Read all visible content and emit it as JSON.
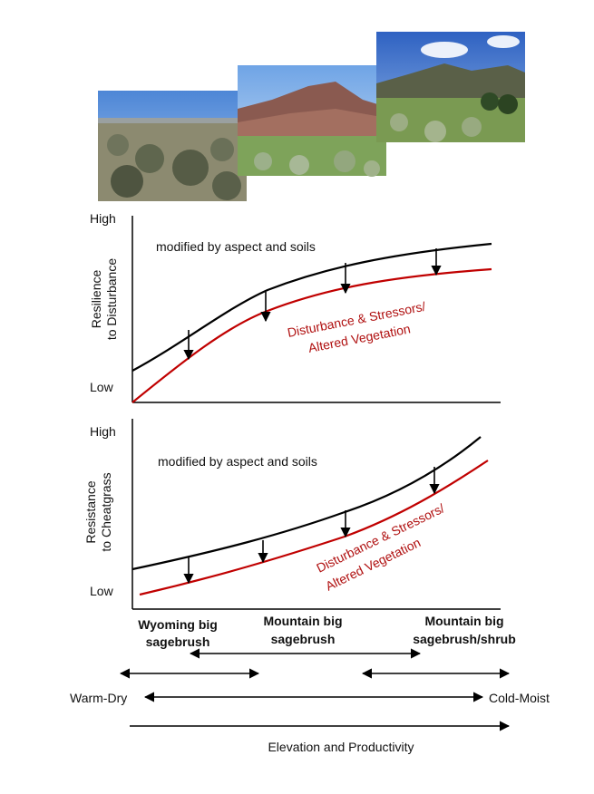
{
  "photos": [
    {
      "name": "wyoming-big-sagebrush-photo",
      "sky": "#5f93d8",
      "ground": "#8a8a6a"
    },
    {
      "name": "mountain-big-sagebrush-photo",
      "sky": "#7fb0e8",
      "ground": "#7aa25a"
    },
    {
      "name": "mountain-big-sagebrush-shrub-photo",
      "sky": "#3f6fc8",
      "ground": "#6f9a4a"
    }
  ],
  "panel1": {
    "ylabel_line1": "Resilience",
    "ylabel_line2": "to Disturbance",
    "y_high": "High",
    "y_low": "Low",
    "note": "modified by aspect and soils",
    "stress_line1": "Disturbance & Stressors/",
    "stress_line2": "Altered Vegetation"
  },
  "panel2": {
    "ylabel_line1": "Resistance",
    "ylabel_line2": "to Cheatgrass",
    "y_high": "High",
    "y_low": "Low",
    "note": "modified by aspect and soils",
    "stress_line1": "Disturbance & Stressors/",
    "stress_line2": "Altered Vegetation"
  },
  "zones": {
    "wyoming_line1": "Wyoming big",
    "wyoming_line2": "sagebrush",
    "mountain_line1": "Mountain big",
    "mountain_line2": "sagebrush",
    "shrub_line1": "Mountain big",
    "shrub_line2": "sagebrush/shrub"
  },
  "gradient": {
    "warm": "Warm-Dry",
    "cold": "Cold-Moist",
    "elevation": "Elevation and Productivity"
  },
  "colors": {
    "upper_curve": "#000000",
    "lower_curve": "#c00000"
  }
}
